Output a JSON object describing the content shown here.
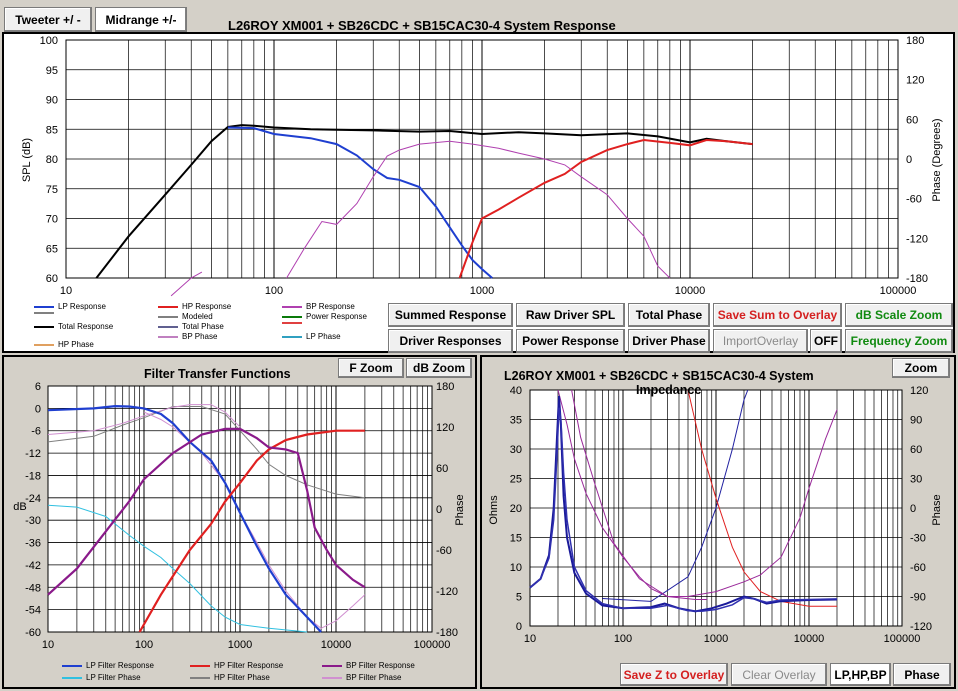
{
  "tabs": {
    "tweeter": "Tweeter +/ -",
    "midrange": "Midrange  +/-"
  },
  "top_chart": {
    "title": "L26ROY  XM001 + SB26CDC  + SB15CAC30-4   System Response",
    "ylabel": "SPL (dB)",
    "y2label": "Phase (Degrees)",
    "y_ticks": [
      "100",
      "95",
      "90",
      "85",
      "80",
      "75",
      "70",
      "65",
      "60"
    ],
    "y2_ticks": [
      "180",
      "120",
      "60",
      "0",
      "-60",
      "-120",
      "-180"
    ],
    "x_ticks": [
      "10",
      "100",
      "1000",
      "10000",
      "100000"
    ],
    "legend": [
      {
        "label": "LP Response",
        "color": "#1f3fd0"
      },
      {
        "label": "HP Response",
        "color": "#e02020"
      },
      {
        "label": "BP Response",
        "color": "#b040b0"
      },
      {
        "label": "",
        "color": "#808080"
      },
      {
        "label": "Modeled",
        "color": "#808080"
      },
      {
        "label": "Power Response",
        "color": "#0a7a0a"
      },
      {
        "label": "Total Response",
        "color": "#000000"
      },
      {
        "label": "Total Phase",
        "color": "#606090"
      },
      {
        "label": "",
        "color": "#e04040"
      },
      {
        "label": "HP Phase",
        "color": "#e0a060"
      },
      {
        "label": "BP Phase",
        "color": "#c080c0"
      },
      {
        "label": "LP Phase",
        "color": "#30a0c0"
      }
    ]
  },
  "buttons": {
    "summed": "Summed Response",
    "raw": "Raw Driver SPL",
    "total_phase": "Total Phase",
    "save_sum": "Save Sum to Overlay",
    "db_scale": "dB Scale Zoom",
    "driver_resp": "Driver Responses",
    "power_resp": "Power Response",
    "driver_phase": "Driver Phase",
    "import_overlay": "ImportOverlay",
    "off": "OFF",
    "freq_zoom": "Frequency Zoom",
    "f_zoom": "F Zoom",
    "db_zoom": "dB Zoom",
    "zoom": "Zoom",
    "save_z": "Save Z to Overlay",
    "clear_overlay": "Clear Overlay",
    "lphpbp": "LP,HP,BP",
    "phase": "Phase"
  },
  "filter_chart": {
    "title": "Filter Transfer Functions",
    "ylabel": "dB",
    "y2label": "Phase",
    "y_ticks": [
      "6",
      "0",
      "-6",
      "-12",
      "-18",
      "-24",
      "-30",
      "-36",
      "-42",
      "-48",
      "-54",
      "-60"
    ],
    "y2_ticks": [
      "180",
      "120",
      "60",
      "0",
      "-60",
      "-120",
      "-180"
    ],
    "x_ticks": [
      "10",
      "100",
      "1000",
      "10000",
      "100000"
    ],
    "legend": [
      {
        "label": "LP Filter Response",
        "color": "#1f3fd0"
      },
      {
        "label": "HP Filter Response",
        "color": "#e02020"
      },
      {
        "label": "BP Filter Response",
        "color": "#8a1a8a"
      },
      {
        "label": "LP Filter Phase",
        "color": "#30c0e0"
      },
      {
        "label": "HP Filter Phase",
        "color": "#808080"
      },
      {
        "label": "BP Filter Phase",
        "color": "#d090d0"
      }
    ]
  },
  "impedance_chart": {
    "title": "L26ROY  XM001 + SB26CDC  + SB15CAC30-4    System",
    "title2": "Impedance",
    "ylabel": "Ohms",
    "y2label": "Phase",
    "y_ticks": [
      "40",
      "35",
      "30",
      "25",
      "20",
      "15",
      "10",
      "5",
      "0"
    ],
    "y2_ticks": [
      "120",
      "90",
      "60",
      "30",
      "0",
      "-30",
      "-60",
      "-90",
      "-120"
    ],
    "x_ticks": [
      "10",
      "100",
      "1000",
      "10000",
      "100000"
    ]
  }
}
